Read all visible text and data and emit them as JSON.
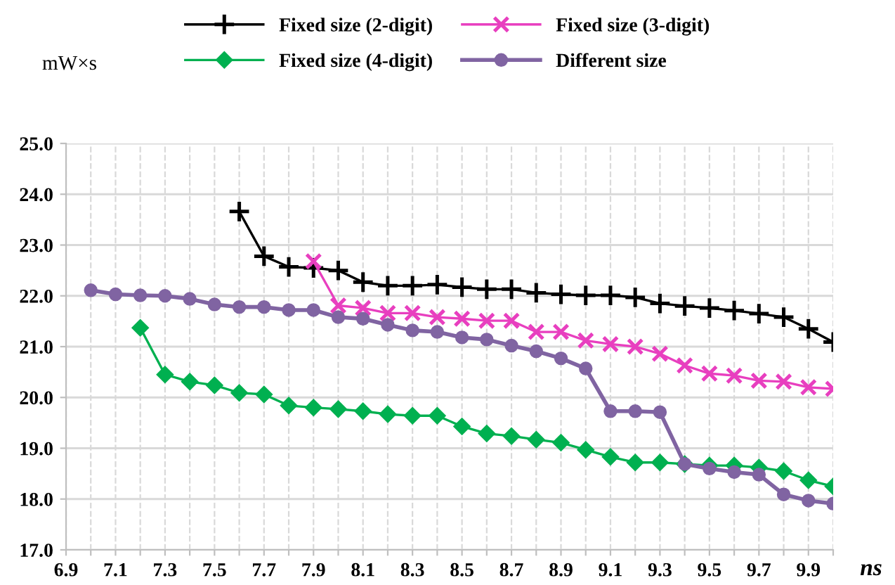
{
  "chart_data": {
    "type": "line",
    "ylabel": "mW×s",
    "xlabel": "ns",
    "x": [
      7.0,
      7.1,
      7.2,
      7.3,
      7.4,
      7.5,
      7.6,
      7.7,
      7.8,
      7.9,
      8.0,
      8.1,
      8.2,
      8.3,
      8.4,
      8.5,
      8.6,
      8.7,
      8.8,
      8.9,
      9.0,
      9.1,
      9.2,
      9.3,
      9.4,
      9.5,
      9.6,
      9.7,
      9.8,
      9.9,
      10.0
    ],
    "series": [
      {
        "name": "Fixed size (2-digit)",
        "color": "#000000",
        "marker": "plus",
        "values": [
          null,
          null,
          null,
          null,
          null,
          null,
          23.66,
          22.78,
          22.57,
          22.55,
          22.5,
          22.27,
          22.2,
          22.2,
          22.22,
          22.17,
          22.13,
          22.13,
          22.06,
          22.03,
          22.01,
          22.01,
          21.97,
          21.85,
          21.8,
          21.76,
          21.71,
          21.65,
          21.58,
          21.35,
          21.09
        ]
      },
      {
        "name": "Fixed size (3-digit)",
        "color": "#e83fbf",
        "marker": "cross",
        "values": [
          null,
          null,
          null,
          null,
          null,
          null,
          null,
          null,
          null,
          22.68,
          21.81,
          21.76,
          21.66,
          21.66,
          21.58,
          21.55,
          21.51,
          21.51,
          21.29,
          21.29,
          21.12,
          21.05,
          21.0,
          20.86,
          20.63,
          20.47,
          20.43,
          20.33,
          20.31,
          20.2,
          20.17
        ]
      },
      {
        "name": "Fixed size (4-digit)",
        "color": "#00b050",
        "marker": "diamond",
        "values": [
          null,
          null,
          21.37,
          20.45,
          20.31,
          20.24,
          20.09,
          20.06,
          19.84,
          19.8,
          19.77,
          19.73,
          19.67,
          19.64,
          19.64,
          19.43,
          19.29,
          19.24,
          19.17,
          19.11,
          18.97,
          18.83,
          18.72,
          18.72,
          18.69,
          18.66,
          18.66,
          18.62,
          18.55,
          18.37,
          18.25
        ]
      },
      {
        "name": "Different size",
        "color": "#8064a2",
        "marker": "circle",
        "values": [
          22.11,
          22.03,
          22.01,
          22.0,
          21.94,
          21.83,
          21.78,
          21.78,
          21.72,
          21.72,
          21.58,
          21.55,
          21.43,
          21.32,
          21.29,
          21.18,
          21.14,
          21.02,
          20.91,
          20.77,
          20.57,
          19.73,
          19.73,
          19.71,
          18.69,
          18.6,
          18.53,
          18.48,
          18.09,
          17.97,
          17.91
        ]
      }
    ],
    "xlim": [
      6.9,
      10.0
    ],
    "xticks": [
      6.9,
      {
        "value": 7.0,
        "label": null
      },
      7.1,
      {
        "value": 7.2,
        "label": null
      },
      7.3,
      {
        "value": 7.4,
        "label": null
      },
      7.5,
      {
        "value": 7.6,
        "label": null
      },
      7.7,
      {
        "value": 7.8,
        "label": null
      },
      7.9,
      {
        "value": 8.0,
        "label": null
      },
      8.1,
      {
        "value": 8.2,
        "label": null
      },
      8.3,
      {
        "value": 8.4,
        "label": null
      },
      8.5,
      {
        "value": 8.6,
        "label": null
      },
      8.7,
      {
        "value": 8.8,
        "label": null
      },
      8.9,
      {
        "value": 9.0,
        "label": null
      },
      9.1,
      {
        "value": 9.2,
        "label": null
      },
      9.3,
      {
        "value": 9.4,
        "label": null
      },
      9.5,
      {
        "value": 9.6,
        "label": null
      },
      9.7,
      {
        "value": 9.8,
        "label": null
      },
      9.9,
      {
        "value": 10.0,
        "label": null
      }
    ],
    "ylim": [
      17.0,
      25.0
    ],
    "yticks": [
      {
        "value": 17,
        "label": "17.0"
      },
      {
        "value": 18,
        "label": "18.0"
      },
      {
        "value": 19,
        "label": "19.0"
      },
      {
        "value": 20,
        "label": "20.0"
      },
      {
        "value": 21,
        "label": "21.0"
      },
      {
        "value": 22,
        "label": "22.0"
      },
      {
        "value": 23,
        "label": "23.0"
      },
      {
        "value": 24,
        "label": "24.0"
      },
      {
        "value": 25,
        "label": "25.0"
      }
    ],
    "grid": true,
    "legend": "top",
    "line_style": "solid"
  }
}
